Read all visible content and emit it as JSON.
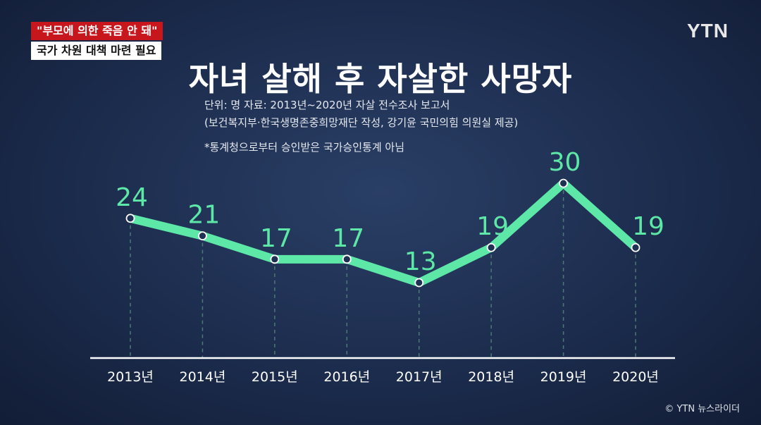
{
  "captions": {
    "headline": "\"부모에 의한 죽음 안 돼\"",
    "subline": "국가 차원 대책 마련 필요"
  },
  "logo": "YTN",
  "title": "자녀 살해 후 자살한 사망자",
  "notes": {
    "unit_source": "단위: 명    자료: 2013년~2020년 자살 전수조사 보고서",
    "producer": "(보건복지부·한국생명존중희망재단 작성, 강기윤 국민의힘 의원실 제공)",
    "disclaimer": "*통계청으로부터 승인받은 국가승인통계 아님"
  },
  "watermark": "©  YTN 뉴스라이더",
  "colors": {
    "line": "#5de8a8",
    "marker_fill": "#1f3153",
    "baseline": "#ffffff",
    "dash": "#4c7a74"
  },
  "chart_data": {
    "type": "line",
    "categories": [
      "2013년",
      "2014년",
      "2015년",
      "2016년",
      "2017년",
      "2018년",
      "2019년",
      "2020년"
    ],
    "values": [
      24,
      21,
      17,
      17,
      13,
      19,
      30,
      19
    ],
    "data_labels": [
      "24",
      "21",
      "17",
      "17",
      "13",
      "19",
      "30",
      "19"
    ],
    "ylim": [
      0,
      30
    ],
    "grid": false
  }
}
